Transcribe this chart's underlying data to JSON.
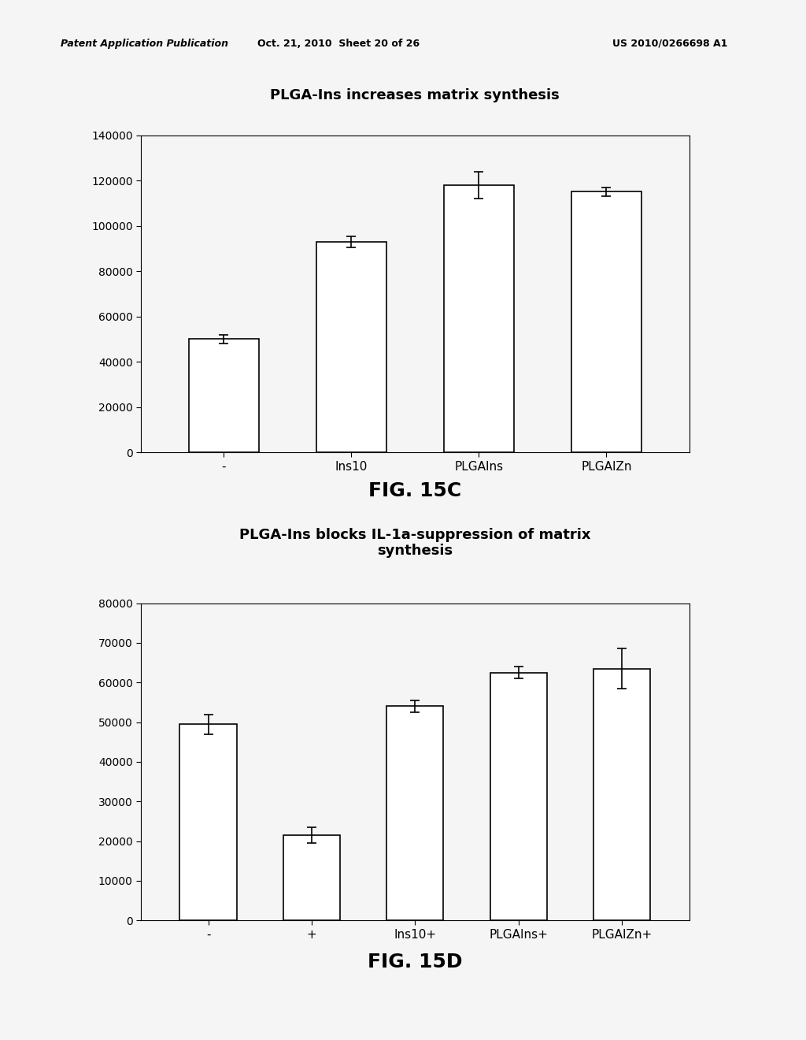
{
  "header_left": "Patent Application Publication",
  "header_mid": "Oct. 21, 2010  Sheet 20 of 26",
  "header_right": "US 2010/0266698 A1",
  "chart1": {
    "title": "PLGA-Ins increases matrix synthesis",
    "categories": [
      "-",
      "Ins10",
      "PLGAIns",
      "PLGAIZn"
    ],
    "values": [
      50000,
      93000,
      118000,
      115000
    ],
    "errors": [
      2000,
      2500,
      6000,
      2000
    ],
    "ylim": [
      0,
      140000
    ],
    "yticks": [
      0,
      20000,
      40000,
      60000,
      80000,
      100000,
      120000,
      140000
    ],
    "fig_label": "FIG. 15C"
  },
  "chart2": {
    "title": "PLGA-Ins blocks IL-1a-suppression of matrix\nsynthesis",
    "categories": [
      "-",
      "+",
      "Ins10+",
      "PLGAIns+",
      "PLGAIZn+"
    ],
    "values": [
      49500,
      21500,
      54000,
      62500,
      63500
    ],
    "errors": [
      2500,
      2000,
      1500,
      1500,
      5000
    ],
    "ylim": [
      0,
      80000
    ],
    "yticks": [
      0,
      10000,
      20000,
      30000,
      40000,
      50000,
      60000,
      70000,
      80000
    ],
    "fig_label": "FIG. 15D"
  },
  "bar_color": "#ffffff",
  "bar_edgecolor": "#000000",
  "background_color": "#f5f5f5",
  "title_fontsize": 13,
  "tick_fontsize": 10,
  "label_fontsize": 11,
  "fig_label_fontsize": 18
}
